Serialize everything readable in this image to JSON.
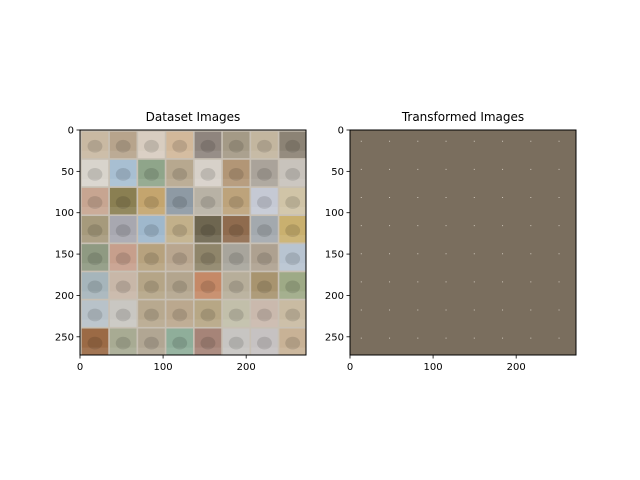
{
  "chart_data": [
    {
      "type": "heatmap",
      "title": "Dataset Images",
      "xlim": [
        0,
        272
      ],
      "ylim": [
        272,
        0
      ],
      "xticks": [
        0,
        100,
        200
      ],
      "yticks": [
        0,
        50,
        100,
        150,
        200,
        250
      ],
      "grid_rows": 8,
      "grid_cols": 8,
      "tile_px": 32,
      "padding_px": 2,
      "grid_color": "#c8c0b4",
      "tile_colors": [
        [
          "#c9b9a2",
          "#b7a48c",
          "#d8cdc0",
          "#d2b89a",
          "#8f857e",
          "#a49a86",
          "#c3b69f",
          "#8c8375"
        ],
        [
          "#d8d4cc",
          "#a8bfd2",
          "#8fa58a",
          "#b7a88f",
          "#d7d1c9",
          "#b29676",
          "#aaa39a",
          "#c8c3bc"
        ],
        [
          "#c7a591",
          "#8a7f52",
          "#c4a56e",
          "#8e9aa4",
          "#b8b2a5",
          "#bda37b",
          "#c5c9d4",
          "#d0c4a7"
        ],
        [
          "#a69a7c",
          "#a8a8b0",
          "#9fb8cc",
          "#c2b08a",
          "#6e6650",
          "#8f6b4e",
          "#a3a9ae",
          "#c9b06f"
        ],
        [
          "#8f9a82",
          "#c79f8c",
          "#b7a27e",
          "#b9a68f",
          "#8f856a",
          "#a8a59c",
          "#aea190",
          "#b8c4d1"
        ],
        [
          "#a6b5bb",
          "#c8b7a8",
          "#b5a587",
          "#b3a58e",
          "#c58967",
          "#b7ae9a",
          "#a8946f",
          "#9eaa86"
        ],
        [
          "#b8c2c9",
          "#c9c7c2",
          "#b8a98f",
          "#bba88e",
          "#b7a785",
          "#c2bfaa",
          "#cab9ad",
          "#c9bba2"
        ],
        [
          "#9b6a45",
          "#a8ab93",
          "#b1a693",
          "#8fae9a",
          "#a68478",
          "#c7c5c2",
          "#c6c2c2",
          "#c8b296"
        ]
      ]
    },
    {
      "type": "heatmap",
      "title": "Transformed Images",
      "xlim": [
        0,
        272
      ],
      "ylim": [
        272,
        0
      ],
      "xticks": [
        0,
        100,
        200
      ],
      "yticks": [
        0,
        50,
        100,
        150,
        200,
        250
      ],
      "fill_color": "#7a6e5e",
      "dot_color": "#cfc7bb"
    }
  ]
}
